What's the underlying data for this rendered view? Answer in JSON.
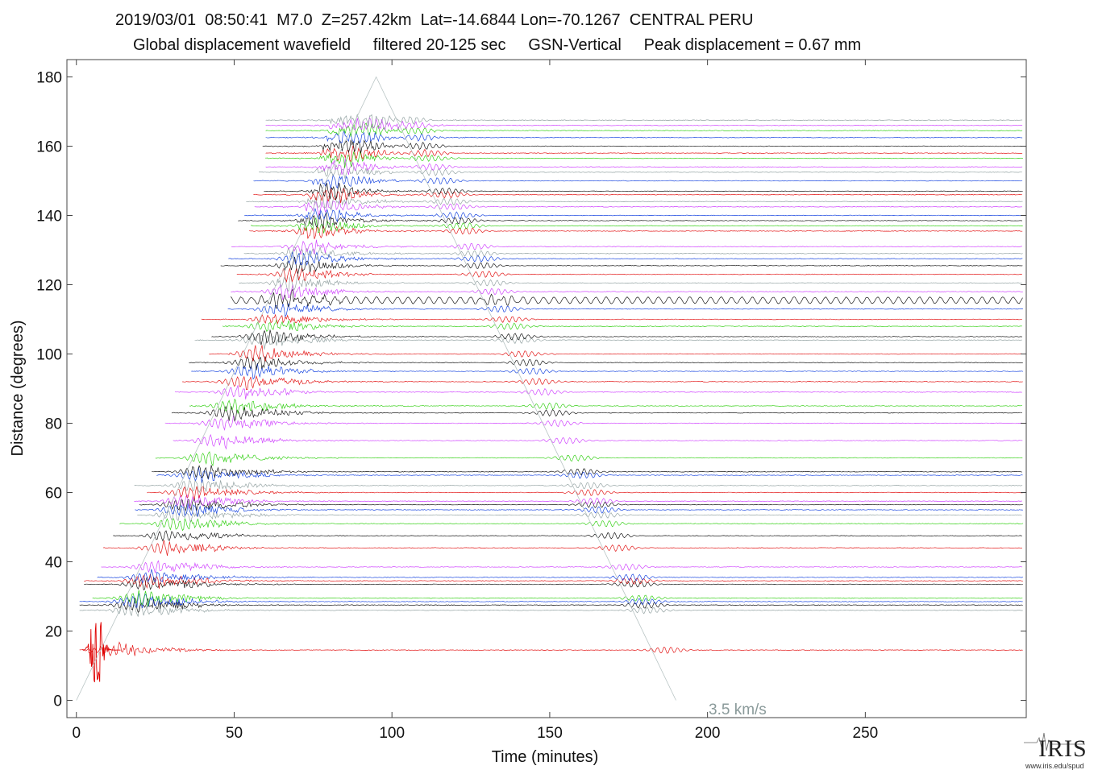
{
  "header": {
    "line1": "2019/03/01  08:50:41  M7.0  Z=257.42km  Lat=-14.6844 Lon=-70.1267  CENTRAL PERU",
    "line2": "Global displacement wavefield     filtered 20-125 sec     GSN-Vertical     Peak displacement = 0.67 mm"
  },
  "logo": {
    "text": "IRIS",
    "url": "www.iris.edu/spud"
  },
  "chart_data": {
    "type": "line",
    "xlabel": "Time (minutes)",
    "ylabel": "Distance (degrees)",
    "xlim": [
      -3,
      301
    ],
    "ylim": [
      -5,
      185
    ],
    "x_ticks": [
      0,
      50,
      100,
      150,
      200,
      250
    ],
    "y_ticks": [
      0,
      20,
      40,
      60,
      80,
      100,
      120,
      140,
      160,
      180
    ],
    "grid": false,
    "annotation": {
      "text": "3.5 km/s",
      "color": "#8a9a9a"
    },
    "reference_curves": [
      {
        "label": "3.5 km/s",
        "x": [
          0,
          95,
          190
        ],
        "y": [
          0,
          180,
          0
        ]
      }
    ],
    "series_colors": [
      "#000000",
      "#e00000",
      "#0033dd",
      "#22cc00",
      "#cc33ff",
      "#8a9a9a"
    ],
    "traces": {
      "distances": [
        14.5,
        26,
        27.5,
        28.5,
        29.5,
        33.5,
        34.5,
        35.5,
        38.5,
        44,
        47.5,
        51,
        53.5,
        55,
        56.5,
        57.5,
        60,
        62,
        65,
        66,
        70,
        75,
        80,
        83,
        85,
        89,
        92,
        95,
        97.5,
        100,
        104,
        105,
        108,
        110,
        113,
        115.5,
        118,
        120.5,
        123,
        125.5,
        127.5,
        129,
        131,
        135.5,
        137,
        138.5,
        140,
        142.5,
        144,
        146,
        147,
        150,
        152.5,
        154,
        156.5,
        158,
        160,
        162.5,
        164.5,
        166,
        167.5
      ],
      "colors": [
        "#e00000",
        "#8a9a9a",
        "#000000",
        "#0033dd",
        "#22cc00",
        "#000000",
        "#e00000",
        "#0033dd",
        "#cc33ff",
        "#e00000",
        "#000000",
        "#22cc00",
        "#8a9a9a",
        "#0033dd",
        "#000000",
        "#cc33ff",
        "#e00000",
        "#8a9a9a",
        "#0033dd",
        "#000000",
        "#22cc00",
        "#cc33ff",
        "#cc33ff",
        "#000000",
        "#22cc00",
        "#cc33ff",
        "#e00000",
        "#0033dd",
        "#000000",
        "#e00000",
        "#8a9a9a",
        "#000000",
        "#22cc00",
        "#e00000",
        "#0033dd",
        "#000000",
        "#cc33ff",
        "#8a9a9a",
        "#e00000",
        "#000000",
        "#0033dd",
        "#8a9a9a",
        "#cc33ff",
        "#e00000",
        "#22cc00",
        "#000000",
        "#0033dd",
        "#cc33ff",
        "#8a9a9a",
        "#e00000",
        "#000000",
        "#0033dd",
        "#8a9a9a",
        "#cc33ff",
        "#22cc00",
        "#e00000",
        "#000000",
        "#0033dd",
        "#22cc00",
        "#cc33ff",
        "#8a9a9a"
      ]
    }
  }
}
